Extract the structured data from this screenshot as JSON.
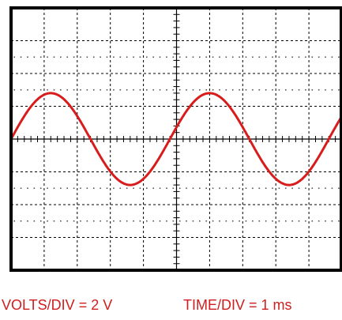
{
  "chart_data": {
    "type": "line",
    "title": "",
    "xlabel": "",
    "ylabel": "",
    "divisions": {
      "x": 10,
      "y": 8
    },
    "volts_per_div": 2,
    "time_per_div_ms": 1,
    "xlim": [
      0,
      10
    ],
    "ylim": [
      -8,
      8
    ],
    "grid": true,
    "series": [
      {
        "waveform": "sine",
        "amplitude_v": 2.8,
        "period_ms": 4.8,
        "phase_start_ms": 0
      }
    ]
  },
  "colors": {
    "trace": "#d81c1c",
    "frame": "#000000",
    "grid": "#000000",
    "caption": "#d01e1e"
  },
  "caption": {
    "volts_label": "VOLTS/DIV  =  2 V",
    "time_label": "TIME/DIV  =  1 ms"
  }
}
